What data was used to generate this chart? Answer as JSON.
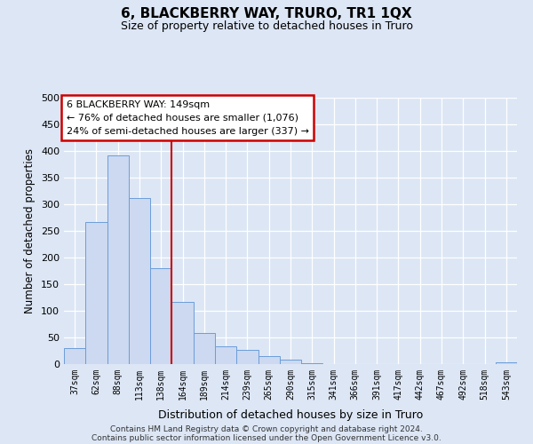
{
  "title": "6, BLACKBERRY WAY, TRURO, TR1 1QX",
  "subtitle": "Size of property relative to detached houses in Truro",
  "xlabel": "Distribution of detached houses by size in Truro",
  "ylabel": "Number of detached properties",
  "bar_labels": [
    "37sqm",
    "62sqm",
    "88sqm",
    "113sqm",
    "138sqm",
    "164sqm",
    "189sqm",
    "214sqm",
    "239sqm",
    "265sqm",
    "290sqm",
    "315sqm",
    "341sqm",
    "366sqm",
    "391sqm",
    "417sqm",
    "442sqm",
    "467sqm",
    "492sqm",
    "518sqm",
    "543sqm"
  ],
  "bar_values": [
    30,
    267,
    392,
    311,
    180,
    116,
    59,
    33,
    26,
    15,
    8,
    1,
    0,
    0,
    0,
    0,
    0,
    0,
    0,
    0,
    3
  ],
  "bar_color": "#ccd9f0",
  "bar_edge_color": "#6b9dd9",
  "vline_x": 4.5,
  "vline_color": "#cc0000",
  "box_text_lines": [
    "6 BLACKBERRY WAY: 149sqm",
    "← 76% of detached houses are smaller (1,076)",
    "24% of semi-detached houses are larger (337) →"
  ],
  "box_edge_color": "#cc0000",
  "box_fill_color": "#ffffff",
  "ylim": [
    0,
    500
  ],
  "yticks": [
    0,
    50,
    100,
    150,
    200,
    250,
    300,
    350,
    400,
    450,
    500
  ],
  "footer_lines": [
    "Contains HM Land Registry data © Crown copyright and database right 2024.",
    "Contains public sector information licensed under the Open Government Licence v3.0."
  ],
  "bg_color": "#dce6f5",
  "plot_bg_color": "#dce6f5"
}
